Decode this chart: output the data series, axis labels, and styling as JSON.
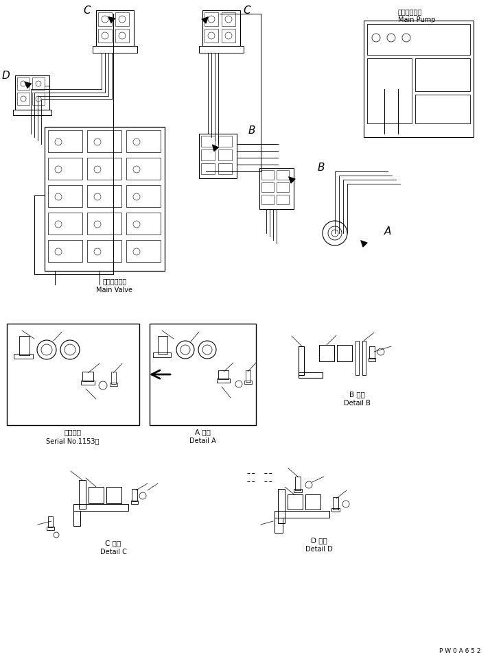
{
  "bg_color": "#ffffff",
  "line_color": "#000000",
  "watermark": "P W 0 A 6 5 2",
  "main_pump_label_jp": "メインポンプ",
  "main_pump_label_en": "Main Pump",
  "main_valve_label_jp": "メインバルブ",
  "main_valve_label_en": "Main Valve",
  "label_A": "A",
  "label_B": "B",
  "label_C": "C",
  "label_D": "D",
  "detail_A_jp": "A 詳細",
  "detail_A_en": "Detail A",
  "detail_B_jp": "B 詳細",
  "detail_B_en": "Detail B",
  "detail_C_jp": "C 詳細",
  "detail_C_en": "Detail C",
  "detail_D_jp": "D 詳細",
  "detail_D_en": "Detail D",
  "serial_jp": "適用号機",
  "serial_en": "Serial No.1153～"
}
